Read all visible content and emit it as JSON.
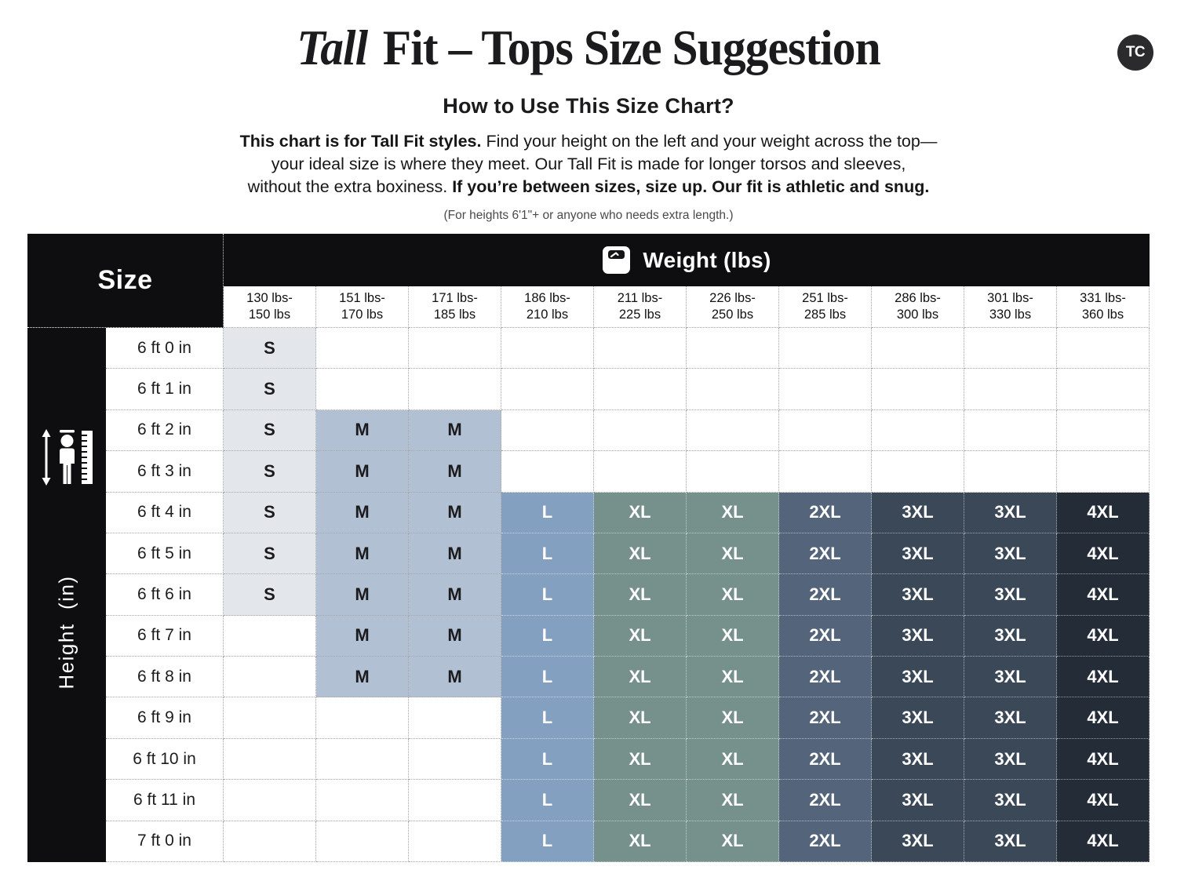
{
  "logo": {
    "text": "TC"
  },
  "header": {
    "title_italic": "Tall",
    "title_rest": " Fit – Tops Size Suggestion",
    "subtitle": "How to Use This Size Chart?",
    "desc_l1_bold": "This chart is for Tall Fit styles.",
    "desc_l1_rest": " Find your height on the left and your weight across the top—",
    "desc_l2": "your ideal size is where they meet. Our Tall Fit is made for longer torsos and sleeves,",
    "desc_l3_rest": "without the extra boxiness. ",
    "desc_l3_bold": "If you’re between sizes, size up. Our fit is athletic and snug.",
    "note": "(For heights 6'1\"+ or anyone who needs extra length.)"
  },
  "chart_data": {
    "type": "table",
    "title": "Tall Fit – Tops Size Suggestion",
    "corner_label": "Size",
    "x_header": "Weight (lbs)",
    "y_header": "Height  (in)",
    "columns": [
      "130 lbs-\n150 lbs",
      "151 lbs-\n170 lbs",
      "171 lbs-\n185 lbs",
      "186 lbs-\n210 lbs",
      "211 lbs-\n225 lbs",
      "226 lbs-\n250 lbs",
      "251 lbs-\n285 lbs",
      "286 lbs-\n300 lbs",
      "301 lbs-\n330 lbs",
      "331 lbs-\n360 lbs"
    ],
    "rows": [
      {
        "height": "6 ft 0 in",
        "sizes": [
          "S",
          "",
          "",
          "",
          "",
          "",
          "",
          "",
          "",
          ""
        ]
      },
      {
        "height": "6 ft 1 in",
        "sizes": [
          "S",
          "",
          "",
          "",
          "",
          "",
          "",
          "",
          "",
          ""
        ]
      },
      {
        "height": "6 ft 2 in",
        "sizes": [
          "S",
          "M",
          "M",
          "",
          "",
          "",
          "",
          "",
          "",
          ""
        ]
      },
      {
        "height": "6 ft 3 in",
        "sizes": [
          "S",
          "M",
          "M",
          "",
          "",
          "",
          "",
          "",
          "",
          ""
        ]
      },
      {
        "height": "6 ft 4 in",
        "sizes": [
          "S",
          "M",
          "M",
          "L",
          "XL",
          "XL",
          "2XL",
          "3XL",
          "3XL",
          "4XL"
        ]
      },
      {
        "height": "6 ft 5 in",
        "sizes": [
          "S",
          "M",
          "M",
          "L",
          "XL",
          "XL",
          "2XL",
          "3XL",
          "3XL",
          "4XL"
        ]
      },
      {
        "height": "6 ft 6 in",
        "sizes": [
          "S",
          "M",
          "M",
          "L",
          "XL",
          "XL",
          "2XL",
          "3XL",
          "3XL",
          "4XL"
        ]
      },
      {
        "height": "6 ft 7 in",
        "sizes": [
          "",
          "M",
          "M",
          "L",
          "XL",
          "XL",
          "2XL",
          "3XL",
          "3XL",
          "4XL"
        ]
      },
      {
        "height": "6 ft 8 in",
        "sizes": [
          "",
          "M",
          "M",
          "L",
          "XL",
          "XL",
          "2XL",
          "3XL",
          "3XL",
          "4XL"
        ]
      },
      {
        "height": "6 ft 9 in",
        "sizes": [
          "",
          "",
          "",
          "L",
          "XL",
          "XL",
          "2XL",
          "3XL",
          "3XL",
          "4XL"
        ]
      },
      {
        "height": "6 ft 10 in",
        "sizes": [
          "",
          "",
          "",
          "L",
          "XL",
          "XL",
          "2XL",
          "3XL",
          "3XL",
          "4XL"
        ]
      },
      {
        "height": "6 ft 11 in",
        "sizes": [
          "",
          "",
          "",
          "L",
          "XL",
          "XL",
          "2XL",
          "3XL",
          "3XL",
          "4XL"
        ]
      },
      {
        "height": "7 ft 0 in",
        "sizes": [
          "",
          "",
          "",
          "L",
          "XL",
          "XL",
          "2XL",
          "3XL",
          "3XL",
          "4XL"
        ]
      }
    ],
    "size_colors": {
      "S": {
        "bg": "#e3e6ea",
        "fg": "#1b1b1d",
        "dark": false
      },
      "M": {
        "bg": "#b2c0d3",
        "fg": "#1b1b1d",
        "dark": false
      },
      "L": {
        "bg": "#84a0c1",
        "fg": "#ffffff",
        "dark": true
      },
      "XL": {
        "bg": "#76908b",
        "fg": "#ffffff",
        "dark": true
      },
      "2XL": {
        "bg": "#54657b",
        "fg": "#ffffff",
        "dark": true
      },
      "3XL": {
        "bg": "#3a4858",
        "fg": "#ffffff",
        "dark": true
      },
      "4XL": {
        "bg": "#242c38",
        "fg": "#ffffff",
        "dark": true
      }
    },
    "header_bg": "#0e0e10",
    "blank_bg": "#ffffff"
  }
}
